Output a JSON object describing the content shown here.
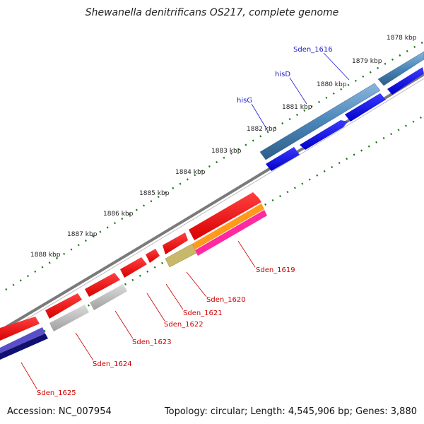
{
  "title": "Shewanella denitrificans OS217, complete genome",
  "footer": {
    "accession": "Accession: NC_007954",
    "stats": "Topology: circular; Length: 4,545,906 bp; Genes: 3,880"
  },
  "ticks": [
    "1878 kbp",
    "1879 kbp",
    "1880 kbp",
    "1881 kbp",
    "1882 kbp",
    "1883 kbp",
    "1884 kbp",
    "1885 kbp",
    "1886 kbp",
    "1887 kbp",
    "1888 kbp"
  ],
  "genes": [
    {
      "name": "Sden_1616",
      "color": "blue"
    },
    {
      "name": "hisD",
      "color": "blue"
    },
    {
      "name": "hisG",
      "color": "blue"
    },
    {
      "name": "Sden_1619",
      "color": "red"
    },
    {
      "name": "Sden_1620",
      "color": "red"
    },
    {
      "name": "Sden_1621",
      "color": "red"
    },
    {
      "name": "Sden_1622",
      "color": "red"
    },
    {
      "name": "Sden_1623",
      "color": "red"
    },
    {
      "name": "Sden_1624",
      "color": "red"
    },
    {
      "name": "Sden_1625",
      "color": "red"
    }
  ],
  "colors": {
    "cds_red": "#ff1010",
    "cds_blue": "#0a0af0",
    "gene_steel": "#4a86b8",
    "gene_gray": "#b8b8b8",
    "gene_orange": "#ff9a1a",
    "gene_magenta": "#ff2aa0",
    "gene_olive": "#c7b86a",
    "gene_indigo": "#5a4fc8",
    "gene_navy": "#101070",
    "backbone": "#7a7a7a",
    "tick": "#1a7a1a"
  }
}
